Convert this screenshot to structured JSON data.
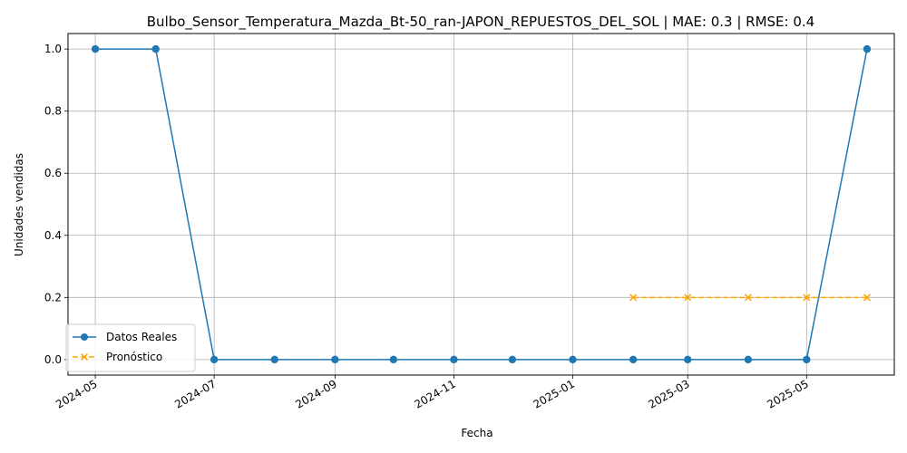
{
  "chart_data": {
    "type": "line",
    "title": "Bulbo_Sensor_Temperatura_Mazda_Bt-50_ran-JAPON_REPUESTOS_DEL_SOL | MAE: 0.3 | RMSE: 0.4",
    "xlabel": "Fecha",
    "ylabel": "Unidades vendidas",
    "ylim": [
      -0.05,
      1.05
    ],
    "xlim": [
      "2024-04-17",
      "2025-06-15"
    ],
    "grid": true,
    "legend_position": "lower-left",
    "x_ticks": [
      "2024-05",
      "2024-07",
      "2024-09",
      "2024-11",
      "2025-01",
      "2025-03",
      "2025-05"
    ],
    "y_ticks": [
      "0.0",
      "0.2",
      "0.4",
      "0.6",
      "0.8",
      "1.0"
    ],
    "series": [
      {
        "name": "Datos Reales",
        "color": "#1f77b4",
        "style": "solid",
        "marker": "circle",
        "x": [
          "2024-05-01",
          "2024-06-01",
          "2024-07-01",
          "2024-08-01",
          "2024-09-01",
          "2024-10-01",
          "2024-11-01",
          "2024-12-01",
          "2025-01-01",
          "2025-02-01",
          "2025-03-01",
          "2025-04-01",
          "2025-05-01",
          "2025-06-01"
        ],
        "values": [
          1,
          1,
          0,
          0,
          0,
          0,
          0,
          0,
          0,
          0,
          0,
          0,
          0,
          1
        ]
      },
      {
        "name": "Pronóstico",
        "color": "#ffa500",
        "style": "dashed",
        "marker": "x",
        "x": [
          "2025-02-01",
          "2025-03-01",
          "2025-04-01",
          "2025-05-01",
          "2025-06-01"
        ],
        "values": [
          0.2,
          0.2,
          0.2,
          0.2,
          0.2
        ]
      }
    ]
  }
}
